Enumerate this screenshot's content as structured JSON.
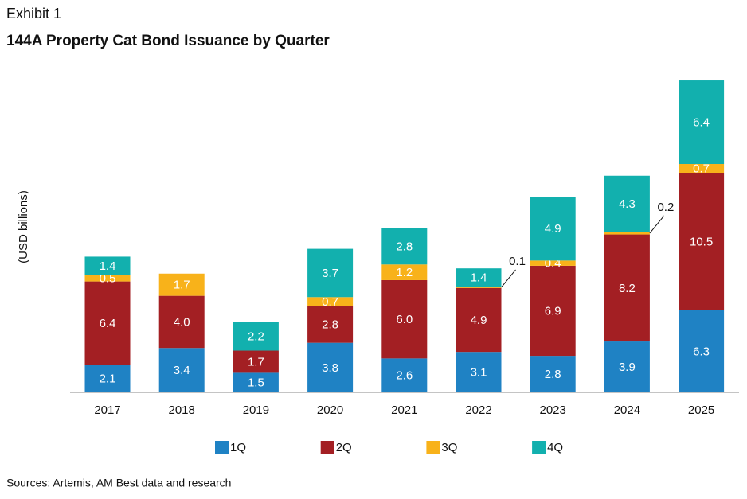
{
  "header": {
    "exhibit": "Exhibit 1"
  },
  "chart_data": {
    "type": "stacked_bar",
    "title": "144A Property Cat Bond Issuance by Quarter",
    "y_label": "(USD billions)",
    "categories": [
      "2017",
      "2018",
      "2019",
      "2020",
      "2021",
      "2022",
      "2023",
      "2024",
      "2025"
    ],
    "series": [
      {
        "name": "1Q",
        "color": "#1f82c4",
        "values": [
          2.1,
          3.4,
          1.5,
          3.8,
          2.6,
          3.1,
          2.8,
          3.9,
          6.3
        ],
        "value_labels": [
          "2.1",
          "3.4",
          "1.5",
          "3.8",
          "2.6",
          "3.1",
          "2.8",
          "3.9",
          "6.3"
        ]
      },
      {
        "name": "2Q",
        "color": "#a31f23",
        "values": [
          6.4,
          4.0,
          1.7,
          2.8,
          6.0,
          4.9,
          6.9,
          8.2,
          10.5
        ],
        "value_labels": [
          "6.4",
          "4.0",
          "1.7",
          "2.8",
          "6.0",
          "4.9",
          "6.9",
          "8.2",
          "10.5"
        ]
      },
      {
        "name": "3Q",
        "color": "#f8b21a",
        "values": [
          0.5,
          1.7,
          null,
          0.7,
          1.2,
          0.1,
          0.4,
          0.2,
          0.7
        ],
        "value_labels": [
          "0.5",
          "1.7",
          null,
          "0.7",
          "1.2",
          "0.1",
          "0.4",
          "0.2",
          "0.7"
        ]
      },
      {
        "name": "4Q",
        "color": "#12b0ae",
        "values": [
          1.4,
          null,
          2.2,
          3.7,
          2.8,
          1.4,
          4.9,
          4.3,
          6.4
        ],
        "value_labels": [
          "1.4",
          null,
          "2.2",
          "3.7",
          "2.8",
          "1.4",
          "4.9",
          "4.3",
          "6.4"
        ]
      }
    ],
    "source": "Sources: Artemis, AM Best data and research"
  }
}
